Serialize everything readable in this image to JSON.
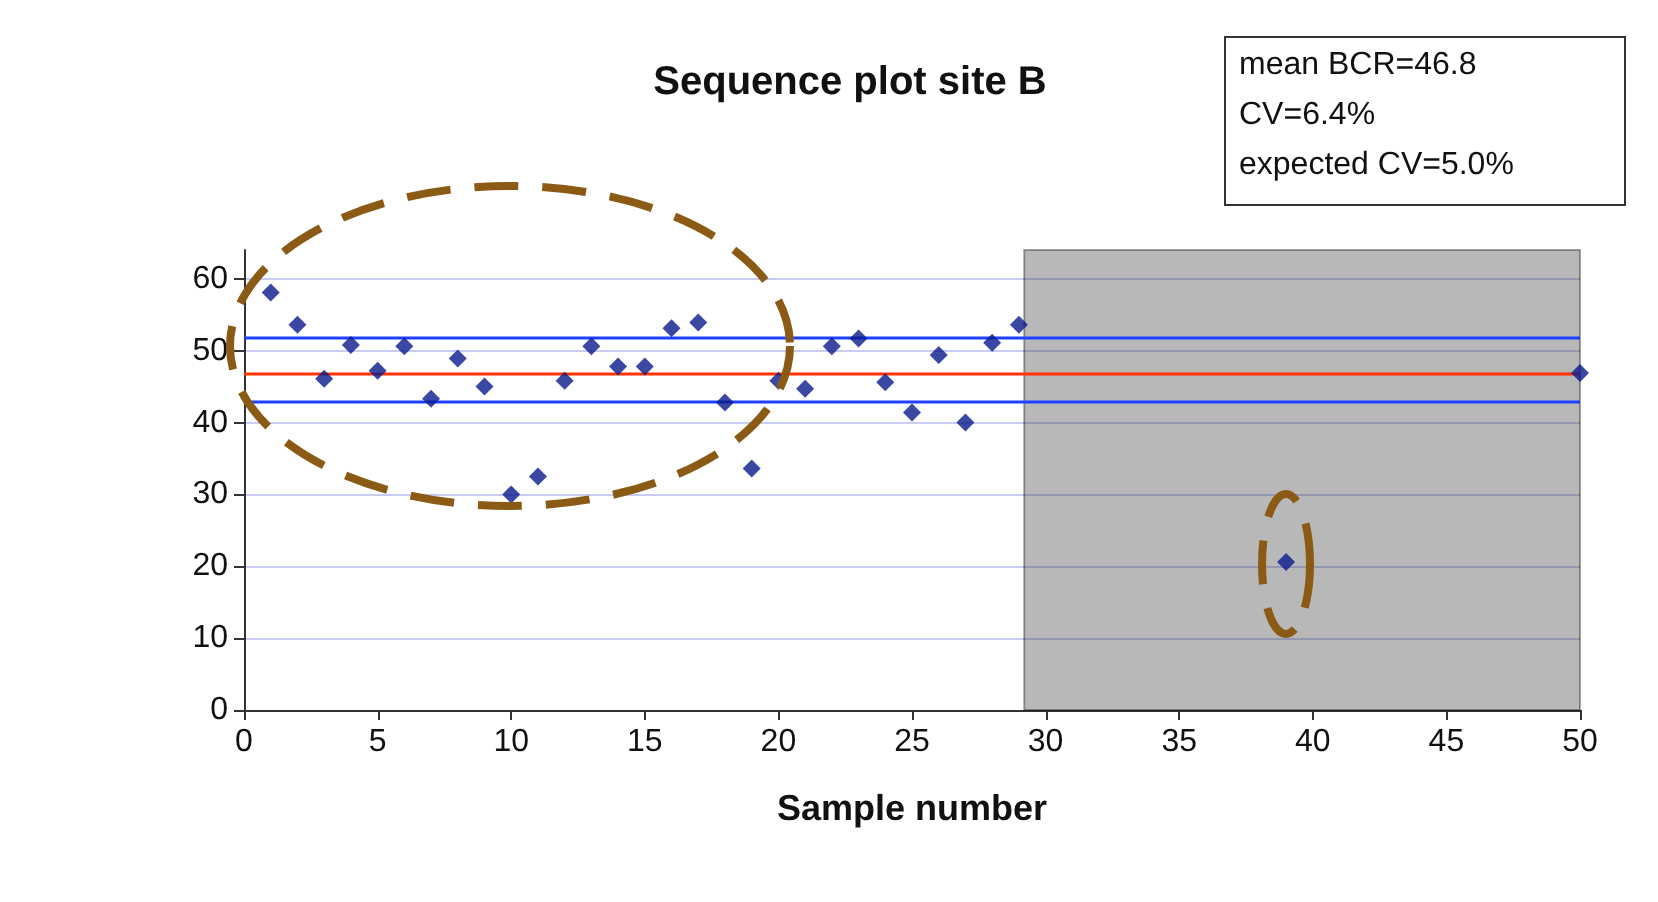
{
  "chart_data": {
    "type": "scatter",
    "title": "Sequence plot site B",
    "xlabel": "Sample number",
    "annotations": [
      "mean BCR=46.8",
      "CV=6.4%",
      "expected CV=5.0%"
    ],
    "x": [
      1,
      2,
      3,
      4,
      5,
      6,
      7,
      8,
      9,
      10,
      11,
      12,
      13,
      14,
      15,
      16,
      17,
      18,
      19,
      20,
      21,
      22,
      23,
      24,
      25,
      26,
      27,
      28,
      29,
      39,
      50
    ],
    "series": [
      {
        "color": "#0a1a8c",
        "values": [
          58.1,
          53.6,
          46.1,
          50.8,
          47.2,
          50.6,
          43.3,
          48.9,
          45.0,
          30.0,
          32.5,
          45.8,
          50.6,
          47.8,
          47.8,
          53.1,
          53.9,
          42.8,
          33.6,
          45.8,
          44.7,
          50.6,
          51.7,
          45.6,
          41.4,
          49.4,
          40.0,
          51.1,
          53.6,
          20.6,
          46.9
        ]
      }
    ],
    "xlim": [
      0,
      50
    ],
    "xticks": [
      0,
      5,
      10,
      15,
      20,
      25,
      30,
      35,
      40,
      45,
      50
    ],
    "ylim": [
      0,
      64
    ],
    "yticks": [
      0,
      10,
      20,
      30,
      40,
      50,
      60
    ],
    "grid": "y",
    "marker": "diamond",
    "ref_lines": [
      {
        "axis": "y",
        "value": 46.8,
        "color": "#ff3300"
      },
      {
        "axis": "y",
        "value": 51.8,
        "color": "#1f3fff"
      },
      {
        "axis": "y",
        "value": 42.8,
        "color": "#1f3fff"
      }
    ],
    "bands": [
      {
        "axis": "x",
        "from": 29.2,
        "to": 50,
        "color": "#333333"
      }
    ]
  }
}
